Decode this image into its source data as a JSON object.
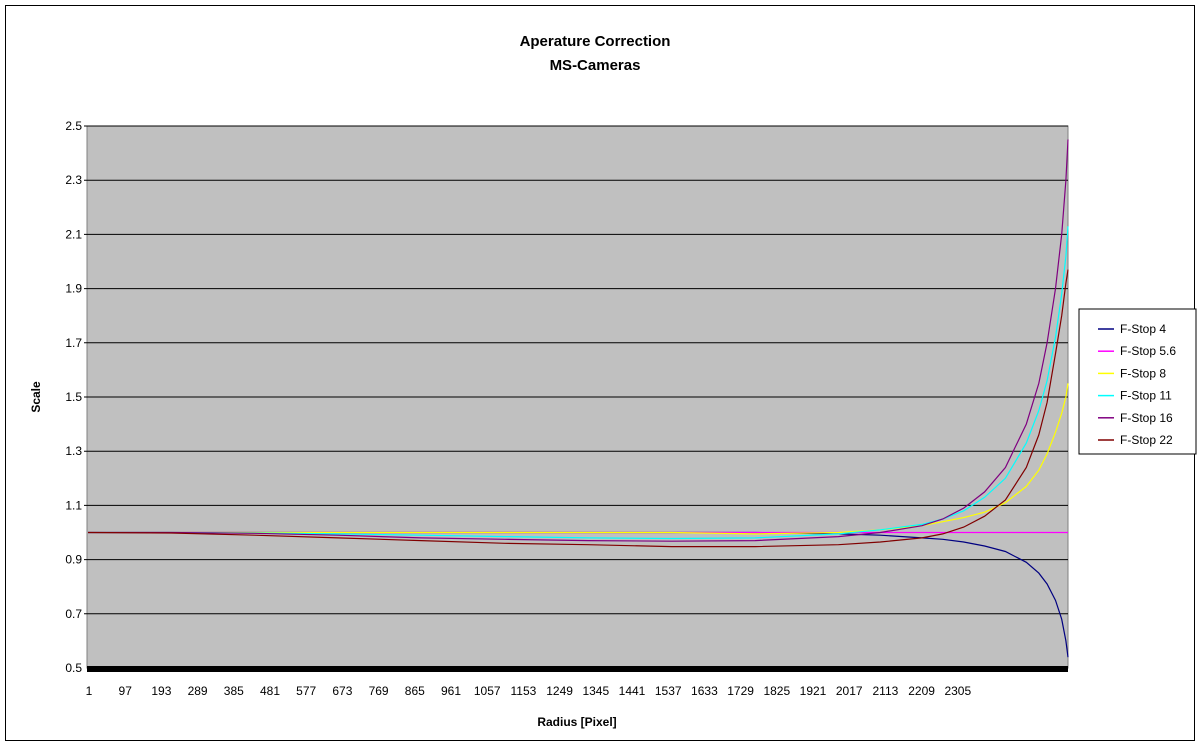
{
  "chart_data": {
    "type": "line",
    "title": "Aperature Correction",
    "subtitle": "MS-Cameras",
    "xlabel": "Radius [Pixel]",
    "ylabel": "Scale",
    "ylim": [
      0.5,
      2.5
    ],
    "yticks": [
      "0.5",
      "0.7",
      "0.9",
      "1.1",
      "1.3",
      "1.5",
      "1.7",
      "1.9",
      "2.1",
      "2.3",
      "2.5"
    ],
    "xticks": [
      "1",
      "97",
      "193",
      "289",
      "385",
      "481",
      "577",
      "673",
      "769",
      "865",
      "961",
      "1057",
      "1153",
      "1249",
      "1345",
      "1441",
      "1537",
      "1633",
      "1729",
      "1825",
      "1921",
      "2017",
      "2113",
      "2209",
      "2305"
    ],
    "xlim": [
      1,
      2350
    ],
    "grid": true,
    "legend_position": "right",
    "plot_background": "#c0c0c0",
    "x": [
      1,
      200,
      400,
      600,
      800,
      1000,
      1200,
      1400,
      1600,
      1800,
      1900,
      2000,
      2050,
      2100,
      2150,
      2200,
      2250,
      2280,
      2300,
      2320,
      2335,
      2345,
      2350
    ],
    "series": [
      {
        "name": "F-Stop 4",
        "color": "#000080",
        "values": [
          1.0,
          1.0,
          1.0,
          1.0,
          1.0,
          1.0,
          1.0,
          1.0,
          1.0,
          0.995,
          0.99,
          0.98,
          0.975,
          0.965,
          0.95,
          0.93,
          0.89,
          0.85,
          0.81,
          0.75,
          0.68,
          0.6,
          0.54
        ]
      },
      {
        "name": "F-Stop 5.6",
        "color": "#ff00ff",
        "values": [
          1.0,
          1.0,
          1.0,
          1.0,
          1.0,
          1.0,
          1.0,
          1.0,
          1.0,
          1.0,
          1.0,
          1.0,
          1.0,
          1.0,
          1.0,
          1.0,
          1.0,
          1.0,
          1.0,
          1.0,
          1.0,
          1.0,
          1.0
        ]
      },
      {
        "name": "F-Stop 8",
        "color": "#ffff00",
        "values": [
          1.0,
          1.0,
          1.0,
          1.0,
          1.0,
          1.0,
          1.0,
          1.0,
          0.995,
          1.0,
          1.01,
          1.025,
          1.04,
          1.055,
          1.075,
          1.11,
          1.17,
          1.23,
          1.29,
          1.37,
          1.44,
          1.5,
          1.55
        ]
      },
      {
        "name": "F-Stop 11",
        "color": "#00ffff",
        "values": [
          1.0,
          1.0,
          0.998,
          0.995,
          0.99,
          0.985,
          0.98,
          0.978,
          0.98,
          0.995,
          1.01,
          1.03,
          1.05,
          1.08,
          1.13,
          1.2,
          1.33,
          1.45,
          1.56,
          1.72,
          1.88,
          2.02,
          2.13
        ]
      },
      {
        "name": "F-Stop 16",
        "color": "#800080",
        "values": [
          1.0,
          1.0,
          0.997,
          0.99,
          0.98,
          0.975,
          0.97,
          0.968,
          0.97,
          0.985,
          1.0,
          1.025,
          1.05,
          1.09,
          1.15,
          1.24,
          1.4,
          1.55,
          1.7,
          1.9,
          2.1,
          2.3,
          2.45
        ]
      },
      {
        "name": "F-Stop 22",
        "color": "#800000",
        "values": [
          1.0,
          0.998,
          0.99,
          0.98,
          0.97,
          0.96,
          0.955,
          0.948,
          0.948,
          0.955,
          0.965,
          0.98,
          0.995,
          1.02,
          1.06,
          1.12,
          1.24,
          1.36,
          1.48,
          1.66,
          1.8,
          1.92,
          1.97
        ]
      }
    ]
  }
}
